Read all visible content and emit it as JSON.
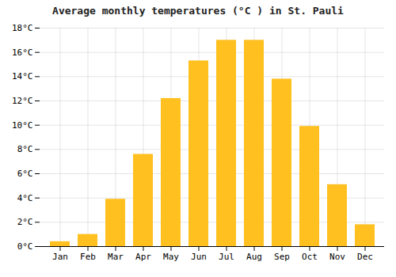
{
  "chart_data": {
    "type": "bar",
    "title": "Average monthly temperatures (°C ) in St. Pauli",
    "categories": [
      "Jan",
      "Feb",
      "Mar",
      "Apr",
      "May",
      "Jun",
      "Jul",
      "Aug",
      "Sep",
      "Oct",
      "Nov",
      "Dec"
    ],
    "values": [
      0.4,
      1.0,
      3.9,
      7.6,
      12.2,
      15.3,
      17.0,
      17.0,
      13.8,
      9.9,
      5.1,
      1.8
    ],
    "color": "#FFC020",
    "ylim": [
      0,
      18
    ],
    "yticks": [
      {
        "value": 0,
        "label": "0°C"
      },
      {
        "value": 2,
        "label": "2°C"
      },
      {
        "value": 4,
        "label": "4°C"
      },
      {
        "value": 6,
        "label": "6°C"
      },
      {
        "value": 8,
        "label": "8°C"
      },
      {
        "value": 10,
        "label": "10°C"
      },
      {
        "value": 12,
        "label": "12°C"
      },
      {
        "value": 14,
        "label": "14°C"
      },
      {
        "value": 16,
        "label": "16°C"
      },
      {
        "value": 18,
        "label": "18°C"
      }
    ],
    "grid": true
  }
}
